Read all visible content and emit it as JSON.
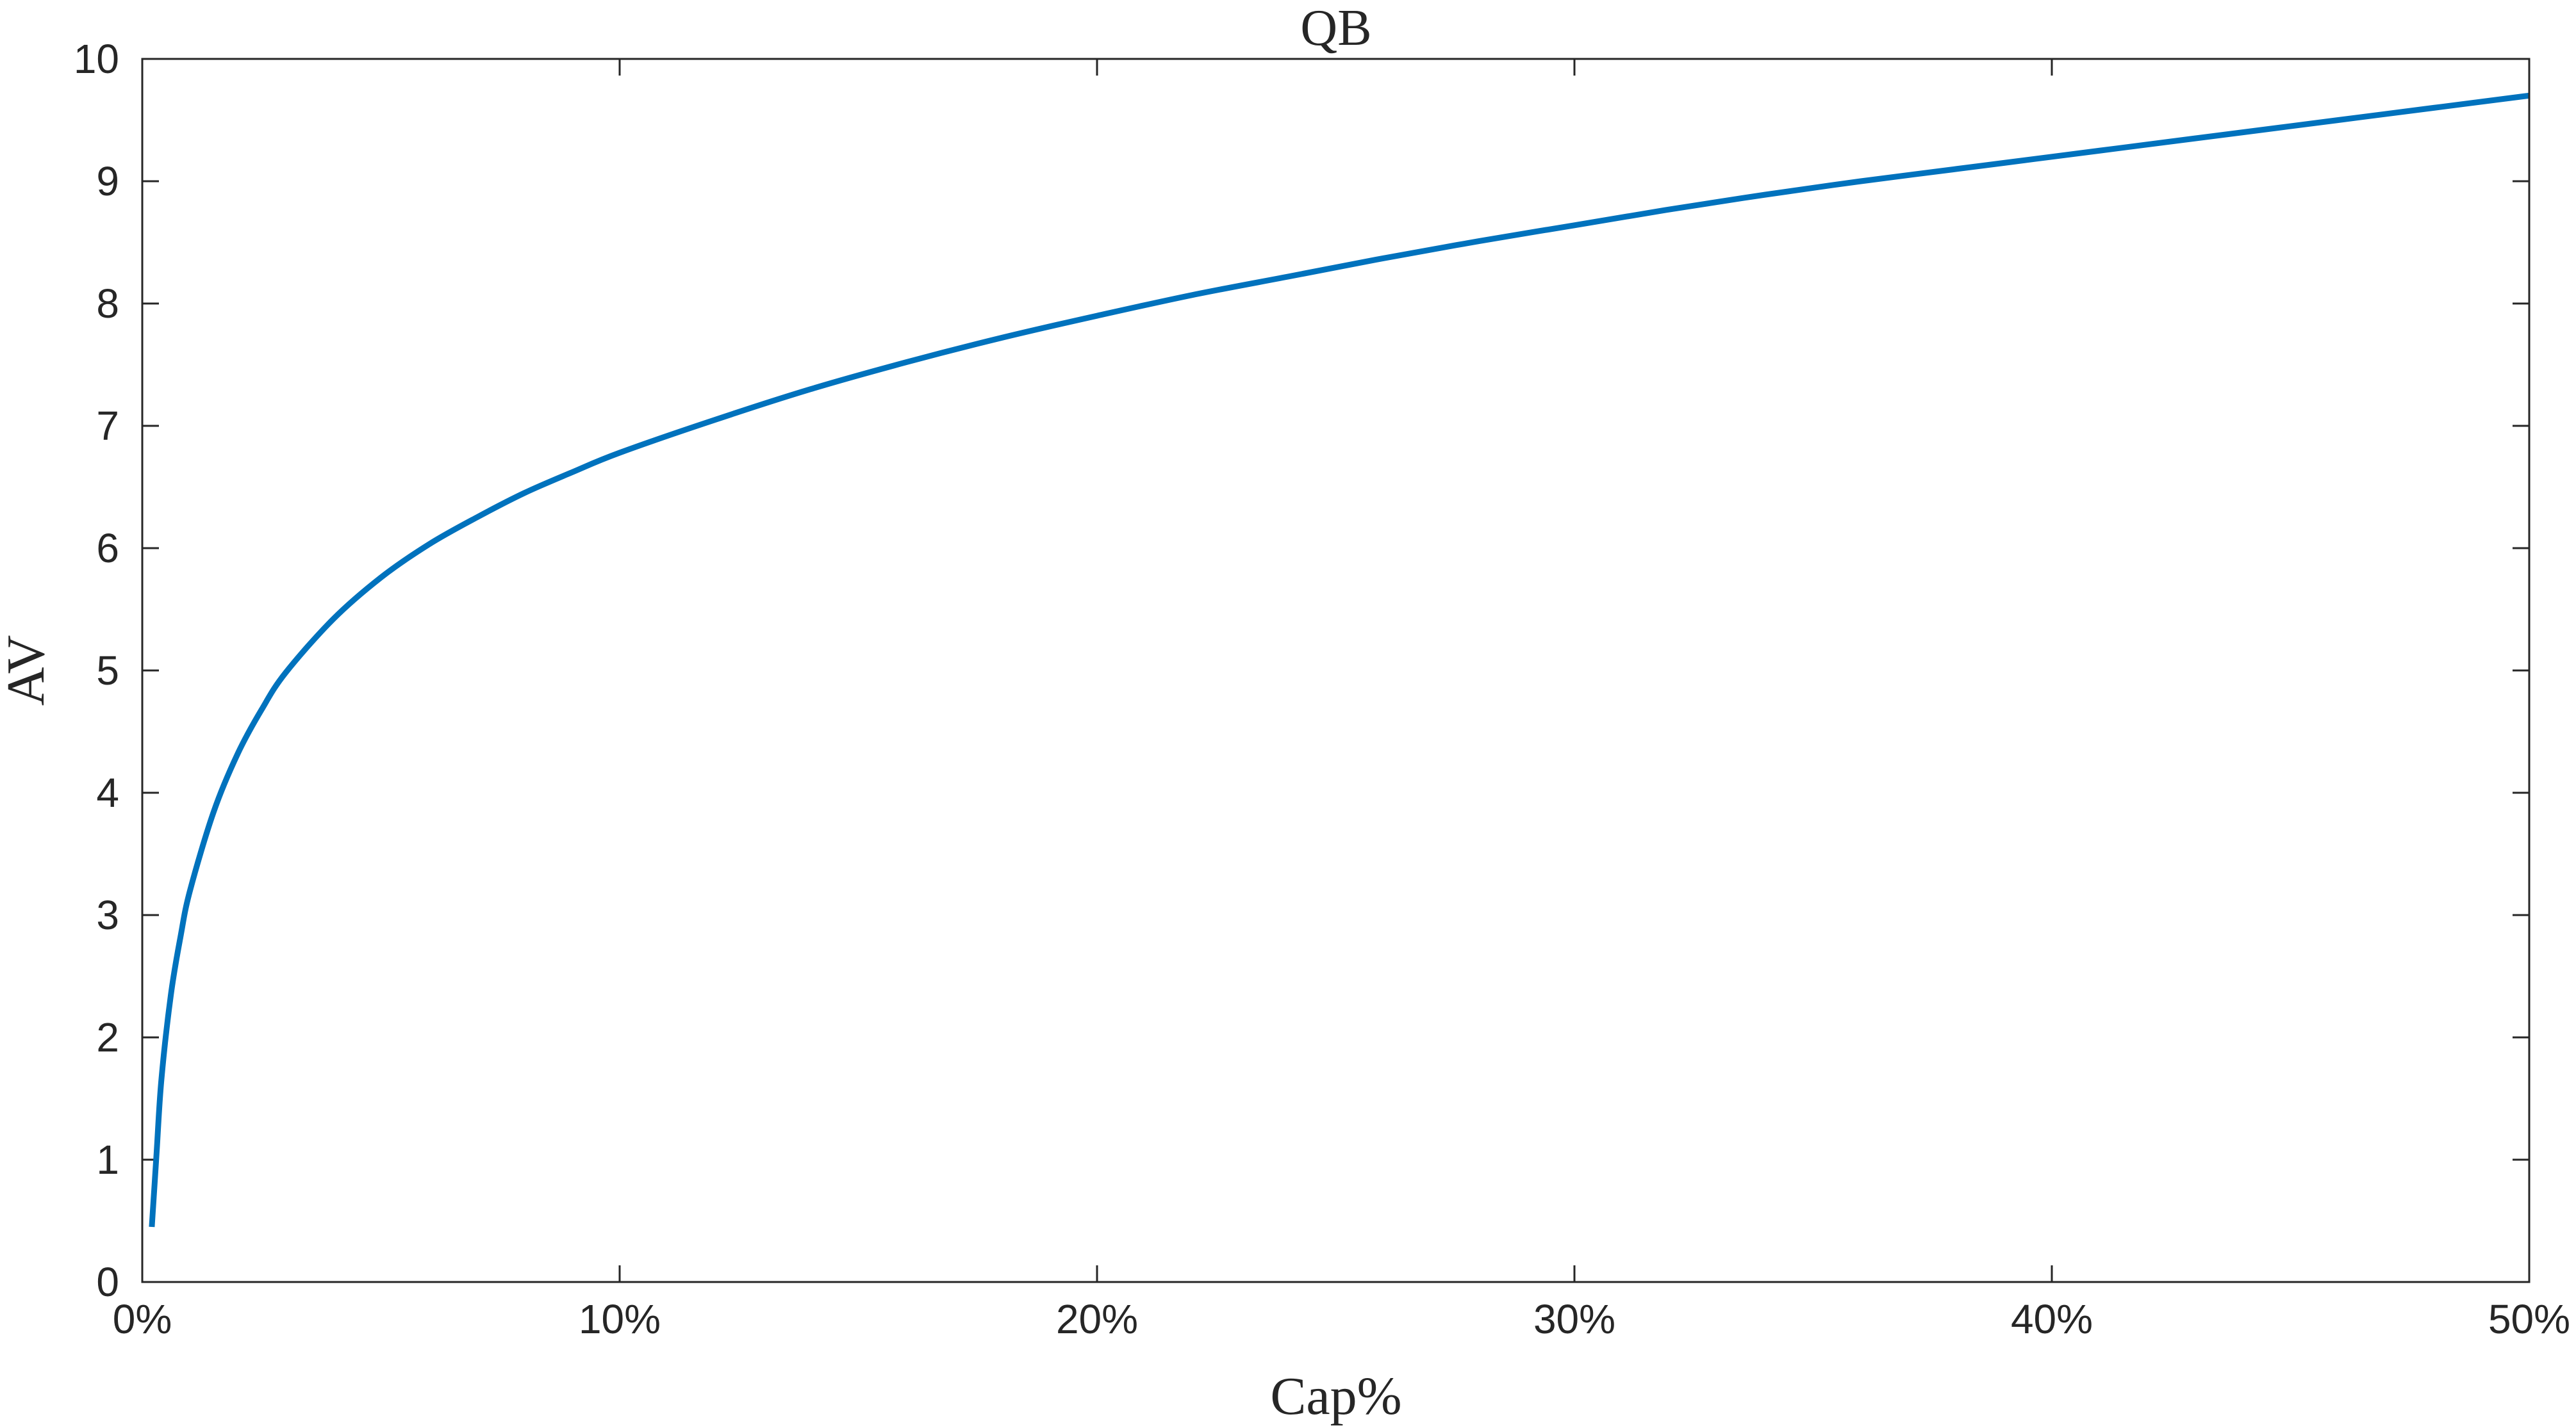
{
  "chart_data": {
    "type": "line",
    "title": "QB",
    "xlabel": "Cap%",
    "ylabel": "AV",
    "xlim": [
      0,
      0.5
    ],
    "ylim": [
      0,
      10
    ],
    "x_ticks": [
      0,
      0.1,
      0.2,
      0.3,
      0.4,
      0.5
    ],
    "x_tick_labels": [
      "0%",
      "10%",
      "20%",
      "30%",
      "40%",
      "50%"
    ],
    "y_ticks": [
      0,
      1,
      2,
      3,
      4,
      5,
      6,
      7,
      8,
      9,
      10
    ],
    "y_tick_labels": [
      "0",
      "1",
      "2",
      "3",
      "4",
      "5",
      "6",
      "7",
      "8",
      "9",
      "10"
    ],
    "grid": false,
    "series": [
      {
        "color": "#0072BD",
        "x": [
          0.002,
          0.003,
          0.004,
          0.006,
          0.008,
          0.01,
          0.015,
          0.02,
          0.025,
          0.03,
          0.04,
          0.05,
          0.06,
          0.07,
          0.08,
          0.09,
          0.1,
          0.12,
          0.14,
          0.16,
          0.18,
          0.2,
          0.22,
          0.24,
          0.26,
          0.28,
          0.3,
          0.32,
          0.34,
          0.36,
          0.38,
          0.4,
          0.42,
          0.44,
          0.46,
          0.48,
          0.5
        ],
        "y": [
          0.45,
          1.05,
          1.65,
          2.35,
          2.82,
          3.2,
          3.85,
          4.32,
          4.68,
          4.98,
          5.42,
          5.76,
          6.03,
          6.25,
          6.45,
          6.62,
          6.78,
          7.05,
          7.3,
          7.52,
          7.72,
          7.9,
          8.07,
          8.22,
          8.37,
          8.51,
          8.64,
          8.77,
          8.89,
          9.0,
          9.1,
          9.2,
          9.3,
          9.4,
          9.5,
          9.6,
          9.7
        ]
      }
    ]
  }
}
